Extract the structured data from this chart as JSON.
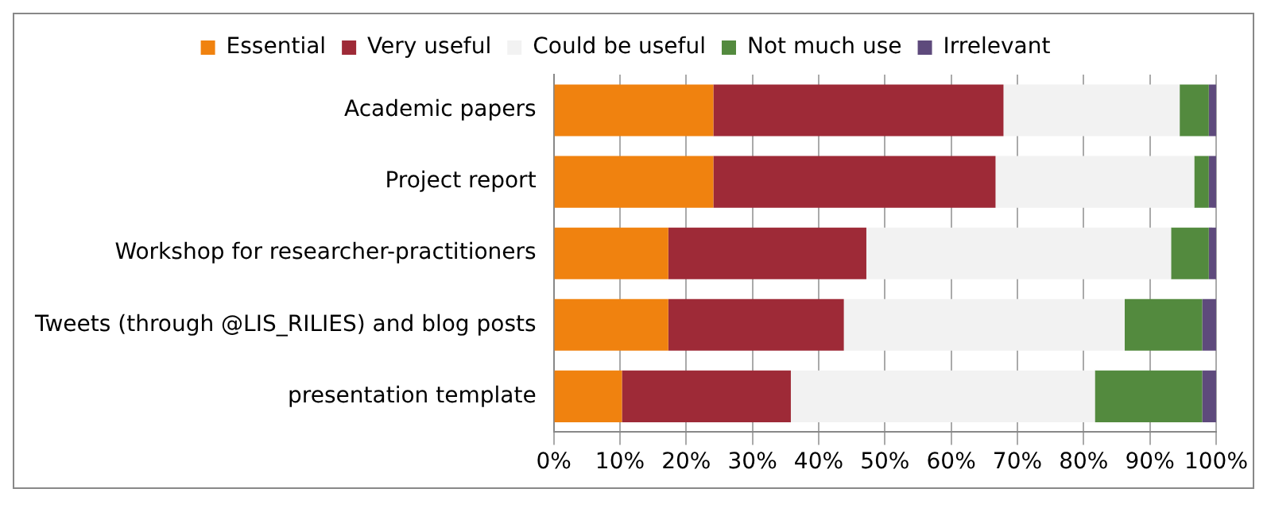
{
  "chart_data": {
    "type": "bar",
    "orientation": "horizontal",
    "stacked": true,
    "categories": [
      "Academic papers",
      "Project report",
      "Workshop for researcher-practitioners",
      "Tweets (through @LIS_RILIES) and blog posts",
      "presentation template"
    ],
    "series": [
      {
        "name": "Essential",
        "color": "#f0820f",
        "values": [
          24.1,
          24.1,
          17.3,
          17.3,
          10.3
        ]
      },
      {
        "name": "Very useful",
        "color": "#9e2a37",
        "values": [
          43.8,
          42.6,
          29.9,
          26.5,
          25.5
        ]
      },
      {
        "name": "Could be useful",
        "color": "#f2f2f2",
        "values": [
          26.6,
          30.0,
          46.0,
          42.4,
          45.9
        ]
      },
      {
        "name": "Not much use",
        "color": "#538a3e",
        "values": [
          4.4,
          2.2,
          5.7,
          11.7,
          16.2
        ]
      },
      {
        "name": "Irrelevant",
        "color": "#5e4a7c",
        "values": [
          1.1,
          1.1,
          1.1,
          2.1,
          2.1
        ]
      }
    ],
    "xlim": [
      0,
      100
    ],
    "xticks": [
      {
        "value": 0,
        "label": "0%"
      },
      {
        "value": 10,
        "label": "10%"
      },
      {
        "value": 20,
        "label": "20%"
      },
      {
        "value": 30,
        "label": "30%"
      },
      {
        "value": 40,
        "label": "40%"
      },
      {
        "value": 50,
        "label": "50%"
      },
      {
        "value": 60,
        "label": "60%"
      },
      {
        "value": 70,
        "label": "70%"
      },
      {
        "value": 80,
        "label": "80%"
      },
      {
        "value": 90,
        "label": "90%"
      },
      {
        "value": 100,
        "label": "100%"
      }
    ],
    "grid": "x",
    "legend": "top"
  }
}
